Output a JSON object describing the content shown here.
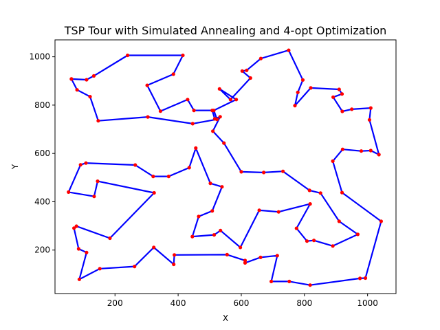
{
  "chart_data": {
    "type": "line",
    "title": "TSP Tour with Simulated Annealing and 4-opt Optimization",
    "xlabel": "X",
    "ylabel": "Y",
    "xlim": [
      10,
      1090
    ],
    "ylim": [
      20,
      1070
    ],
    "xticks": [
      200,
      400,
      600,
      800,
      1000
    ],
    "yticks": [
      200,
      400,
      600,
      800,
      1000
    ],
    "grid": false,
    "series": [
      {
        "color": "#0000ff",
        "marker_color": "#ff0000",
        "points": [
          [
            62,
            908
          ],
          [
            110,
            905
          ],
          [
            133,
            921
          ],
          [
            240,
            1006
          ],
          [
            415,
            1006
          ],
          [
            385,
            928
          ],
          [
            302,
            882
          ],
          [
            344,
            775
          ],
          [
            430,
            823
          ],
          [
            450,
            778
          ],
          [
            508,
            778
          ],
          [
            516,
            743
          ],
          [
            533,
            752
          ],
          [
            510,
            692
          ],
          [
            545,
            643
          ],
          [
            600,
            524
          ],
          [
            671,
            521
          ],
          [
            732,
            526
          ],
          [
            816,
            447
          ],
          [
            851,
            436
          ],
          [
            910,
            319
          ],
          [
            969,
            265
          ],
          [
            890,
            217
          ],
          [
            830,
            240
          ],
          [
            808,
            237
          ],
          [
            775,
            290
          ],
          [
            818,
            391
          ],
          [
            718,
            358
          ],
          [
            657,
            365
          ],
          [
            597,
            211
          ],
          [
            534,
            281
          ],
          [
            514,
            263
          ],
          [
            445,
            256
          ],
          [
            465,
            339
          ],
          [
            508,
            362
          ],
          [
            539,
            462
          ],
          [
            502,
            476
          ],
          [
            456,
            622
          ],
          [
            435,
            541
          ],
          [
            370,
            505
          ],
          [
            321,
            505
          ],
          [
            264,
            552
          ],
          [
            108,
            560
          ],
          [
            91,
            553
          ],
          [
            53,
            440
          ],
          [
            134,
            422
          ],
          [
            145,
            485
          ],
          [
            324,
            437
          ],
          [
            184,
            249
          ],
          [
            78,
            299
          ],
          [
            70,
            291
          ],
          [
            85,
            205
          ],
          [
            110,
            190
          ],
          [
            87,
            79
          ],
          [
            152,
            123
          ],
          [
            262,
            132
          ],
          [
            323,
            211
          ],
          [
            386,
            141
          ],
          [
            388,
            180
          ],
          [
            555,
            181
          ],
          [
            612,
            157
          ],
          [
            612,
            147
          ],
          [
            661,
            170
          ],
          [
            714,
            177
          ],
          [
            695,
            70
          ],
          [
            752,
            70
          ],
          [
            818,
            55
          ],
          [
            976,
            83
          ],
          [
            993,
            84
          ],
          [
            1043,
            319
          ],
          [
            919,
            438
          ],
          [
            890,
            568
          ],
          [
            921,
            617
          ],
          [
            980,
            610
          ],
          [
            1010,
            612
          ],
          [
            1036,
            595
          ],
          [
            1006,
            739
          ],
          [
            1010,
            788
          ],
          [
            950,
            783
          ],
          [
            920,
            774
          ],
          [
            891,
            833
          ],
          [
            919,
            846
          ],
          [
            910,
            865
          ],
          [
            820,
            871
          ],
          [
            770,
            798
          ],
          [
            779,
            853
          ],
          [
            795,
            904
          ],
          [
            750,
            1027
          ],
          [
            662,
            993
          ],
          [
            617,
            944
          ],
          [
            603,
            941
          ],
          [
            629,
            912
          ],
          [
            566,
            823
          ],
          [
            531,
            867
          ],
          [
            584,
            823
          ],
          [
            513,
            778
          ],
          [
            523,
            741
          ],
          [
            446,
            723
          ],
          [
            304,
            751
          ],
          [
            147,
            735
          ],
          [
            121,
            835
          ],
          [
            80,
            863
          ],
          [
            62,
            908
          ]
        ]
      }
    ]
  }
}
